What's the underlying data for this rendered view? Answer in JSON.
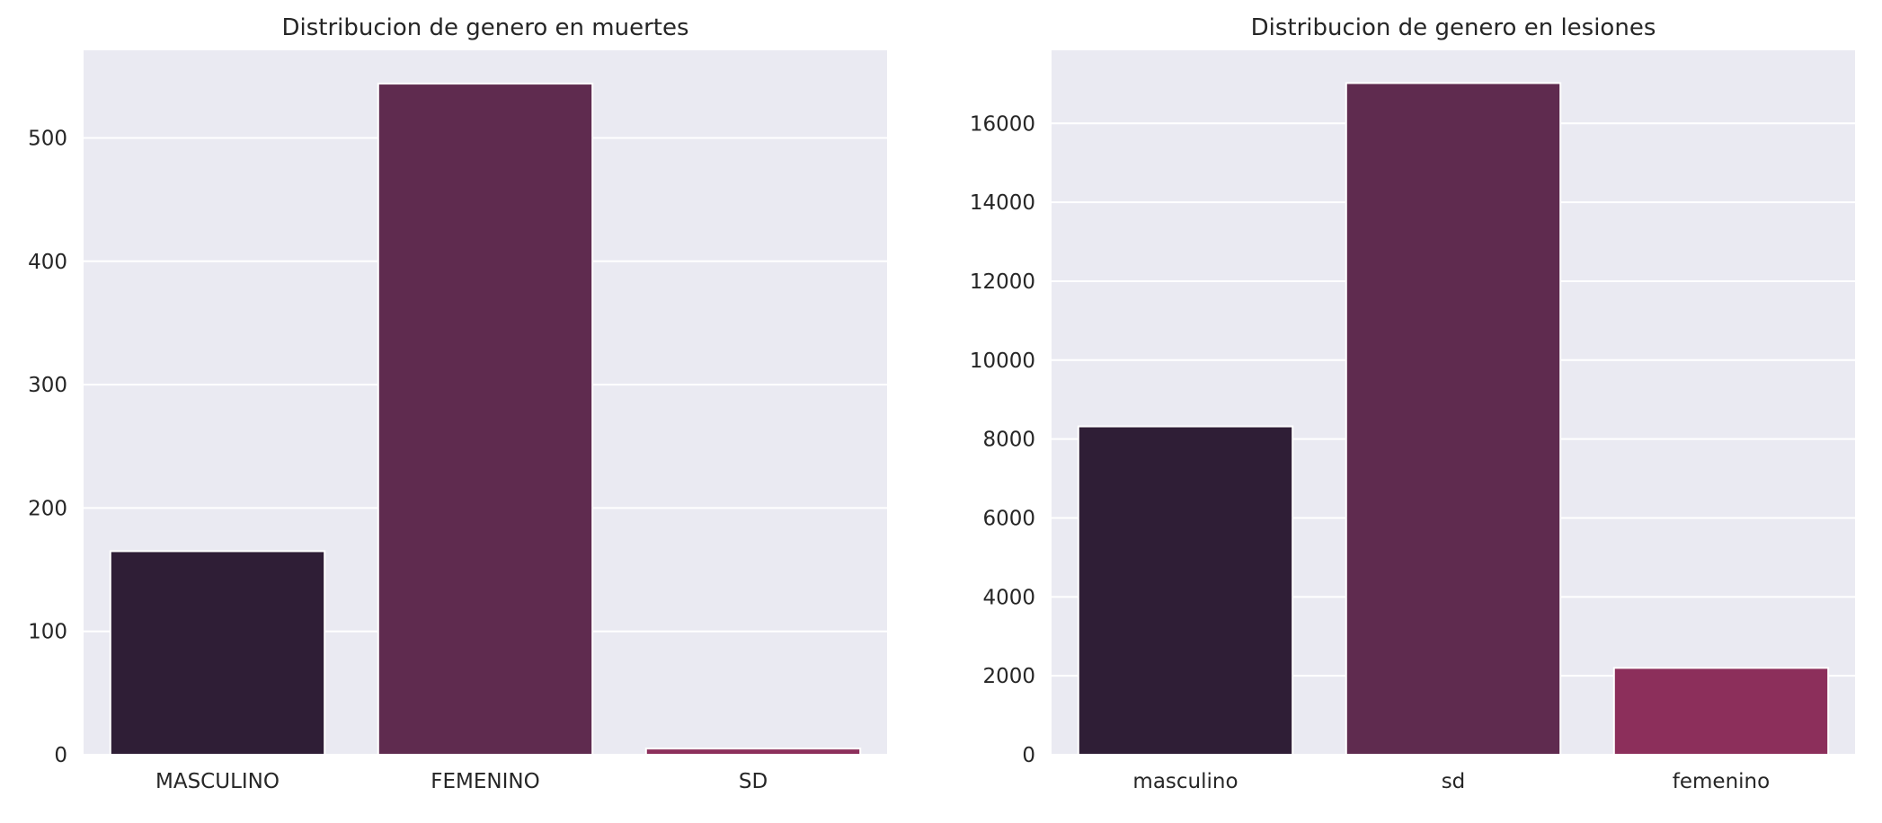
{
  "chart_data": [
    {
      "type": "bar",
      "title": "Distribucion de genero en muertes",
      "xlabel": "",
      "ylabel": "",
      "categories": [
        "MASCULINO",
        "FEMENINO",
        "SD"
      ],
      "values": [
        165,
        544,
        5
      ],
      "colors": [
        "#2f1e36",
        "#5f2b4f",
        "#8c2f5b"
      ],
      "yticks": [
        0,
        100,
        200,
        300,
        400,
        500
      ],
      "ylim": [
        0,
        571
      ],
      "grid": true,
      "background": "#eaeaf2"
    },
    {
      "type": "bar",
      "title": "Distribucion de genero en lesiones",
      "xlabel": "",
      "ylabel": "",
      "categories": [
        "masculino",
        "sd",
        "femenino"
      ],
      "values": [
        8320,
        17020,
        2200
      ],
      "colors": [
        "#2f1e36",
        "#5f2b4f",
        "#8c2f5b"
      ],
      "yticks": [
        0,
        2000,
        4000,
        6000,
        8000,
        10000,
        12000,
        14000,
        16000
      ],
      "ylim": [
        0,
        17850
      ],
      "grid": true,
      "background": "#eaeaf2"
    }
  ]
}
